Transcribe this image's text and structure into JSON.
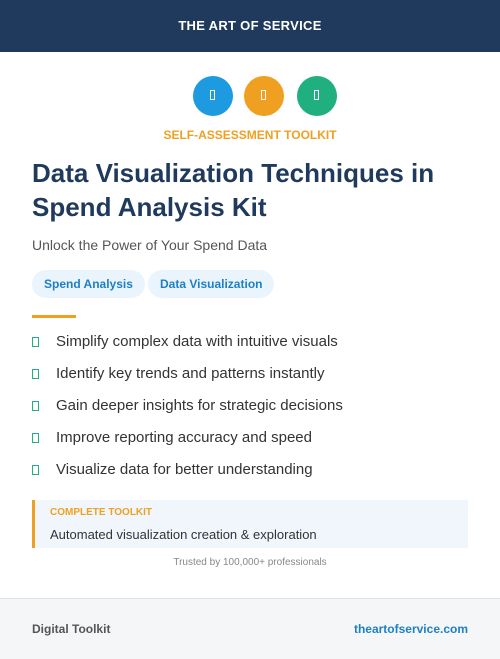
{
  "header": {
    "title": "THE ART OF SERVICE"
  },
  "label": "SELF-ASSESSMENT TOOLKIT",
  "title": "Data Visualization Techniques in Spend Analysis Kit",
  "subtitle": "Unlock the Power of Your Spend Data",
  "tags": [
    "Spend Analysis",
    "Data Visualization"
  ],
  "features": [
    "Simplify complex data with intuitive visuals",
    "Identify key trends and patterns instantly",
    "Gain deeper insights for strategic decisions",
    "Improve reporting accuracy and speed",
    "Visualize data for better understanding"
  ],
  "callout": {
    "label": "COMPLETE TOOLKIT",
    "text": "Automated visualization creation & exploration"
  },
  "trust": "Trusted by 100,000+ professionals",
  "footer": {
    "left": "Digital Toolkit",
    "right": "theartofservice.com"
  }
}
